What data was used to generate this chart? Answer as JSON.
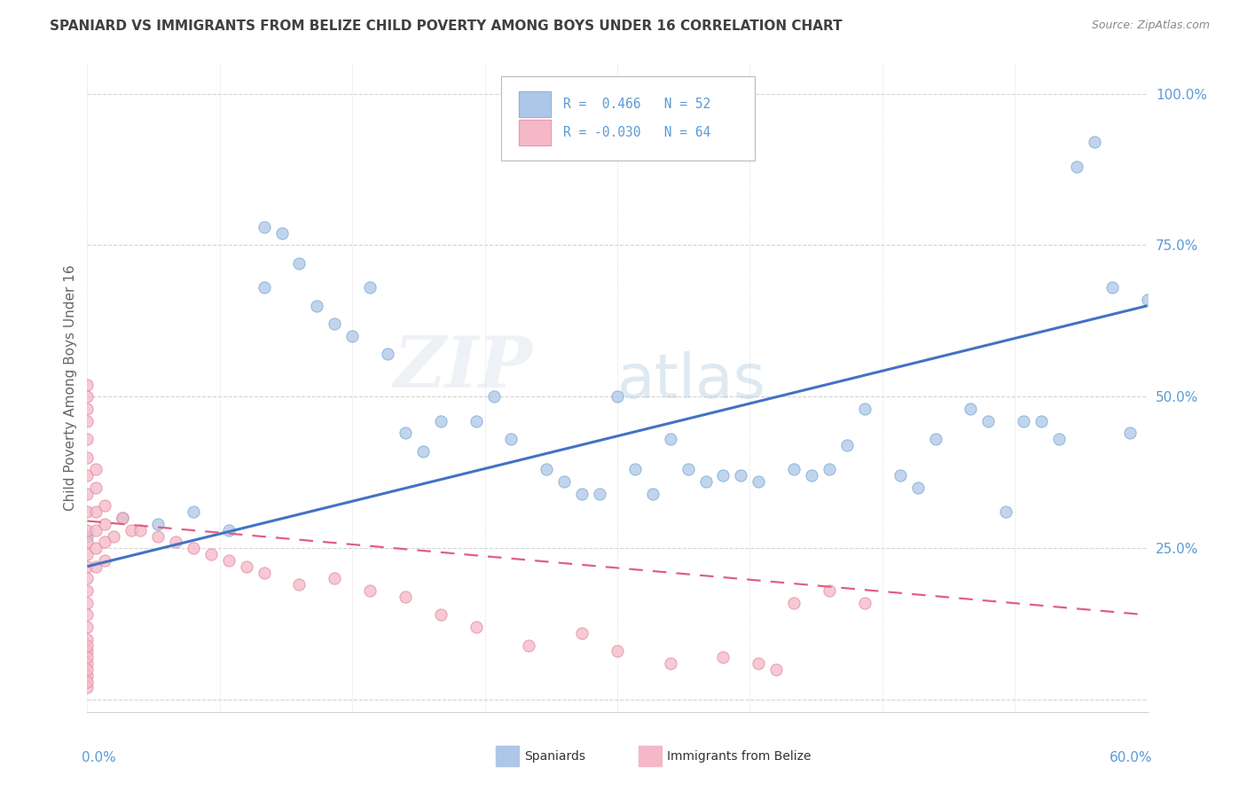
{
  "title": "SPANIARD VS IMMIGRANTS FROM BELIZE CHILD POVERTY AMONG BOYS UNDER 16 CORRELATION CHART",
  "source": "Source: ZipAtlas.com",
  "ylabel": "Child Poverty Among Boys Under 16",
  "xlim": [
    0.0,
    0.6
  ],
  "ylim": [
    -0.02,
    1.05
  ],
  "blue_color": "#aec6e8",
  "blue_edge_color": "#7aadd4",
  "pink_color": "#f4b8c8",
  "pink_edge_color": "#e88aa0",
  "blue_line_color": "#4472c4",
  "pink_line_color": "#e06080",
  "title_color": "#404040",
  "source_color": "#888888",
  "axis_label_color": "#5b9bd5",
  "ylabel_color": "#666666",
  "grid_color": "#d0d0d0",
  "blue_x": [
    0.0,
    0.02,
    0.04,
    0.06,
    0.08,
    0.1,
    0.12,
    0.13,
    0.14,
    0.15,
    0.16,
    0.17,
    0.18,
    0.19,
    0.2,
    0.22,
    0.23,
    0.24,
    0.26,
    0.28,
    0.3,
    0.31,
    0.32,
    0.33,
    0.34,
    0.35,
    0.36,
    0.37,
    0.38,
    0.4,
    0.41,
    0.42,
    0.43,
    0.44,
    0.46,
    0.47,
    0.48,
    0.5,
    0.52,
    0.54,
    0.55,
    0.56,
    0.57,
    0.58,
    0.59,
    0.6,
    0.27,
    0.29,
    0.1,
    0.11,
    0.51,
    0.53
  ],
  "blue_y": [
    0.27,
    0.3,
    0.29,
    0.31,
    0.28,
    0.68,
    0.72,
    0.65,
    0.62,
    0.6,
    0.68,
    0.57,
    0.44,
    0.41,
    0.46,
    0.46,
    0.5,
    0.43,
    0.38,
    0.34,
    0.5,
    0.38,
    0.34,
    0.43,
    0.38,
    0.36,
    0.37,
    0.37,
    0.36,
    0.38,
    0.37,
    0.38,
    0.42,
    0.48,
    0.37,
    0.35,
    0.43,
    0.48,
    0.31,
    0.46,
    0.43,
    0.88,
    0.92,
    0.68,
    0.44,
    0.66,
    0.36,
    0.34,
    0.78,
    0.77,
    0.46,
    0.46
  ],
  "pink_x": [
    0.0,
    0.0,
    0.0,
    0.0,
    0.0,
    0.0,
    0.0,
    0.0,
    0.0,
    0.0,
    0.0,
    0.0,
    0.0,
    0.0,
    0.0,
    0.0,
    0.0,
    0.0,
    0.0,
    0.0,
    0.0,
    0.0,
    0.0,
    0.0,
    0.0,
    0.005,
    0.005,
    0.005,
    0.005,
    0.01,
    0.01,
    0.015,
    0.02,
    0.025,
    0.03,
    0.04,
    0.05,
    0.06,
    0.07,
    0.08,
    0.09,
    0.1,
    0.12,
    0.14,
    0.16,
    0.18,
    0.2,
    0.22,
    0.25,
    0.28,
    0.3,
    0.33,
    0.36,
    0.39,
    0.42,
    0.44,
    0.01,
    0.01,
    0.005,
    0.005,
    0.0,
    0.0,
    0.38,
    0.4
  ],
  "pink_y": [
    0.5,
    0.46,
    0.43,
    0.4,
    0.37,
    0.34,
    0.31,
    0.28,
    0.26,
    0.24,
    0.22,
    0.2,
    0.18,
    0.16,
    0.14,
    0.12,
    0.1,
    0.08,
    0.06,
    0.04,
    0.02,
    0.03,
    0.05,
    0.07,
    0.09,
    0.31,
    0.28,
    0.25,
    0.22,
    0.32,
    0.29,
    0.27,
    0.3,
    0.28,
    0.28,
    0.27,
    0.26,
    0.25,
    0.24,
    0.23,
    0.22,
    0.21,
    0.19,
    0.2,
    0.18,
    0.17,
    0.14,
    0.12,
    0.09,
    0.11,
    0.08,
    0.06,
    0.07,
    0.05,
    0.18,
    0.16,
    0.26,
    0.23,
    0.35,
    0.38,
    0.48,
    0.52,
    0.06,
    0.16
  ],
  "blue_line_x": [
    0.0,
    0.6
  ],
  "blue_line_y": [
    0.22,
    0.65
  ],
  "pink_line_x": [
    0.0,
    0.6
  ],
  "pink_line_y": [
    0.295,
    0.14
  ]
}
